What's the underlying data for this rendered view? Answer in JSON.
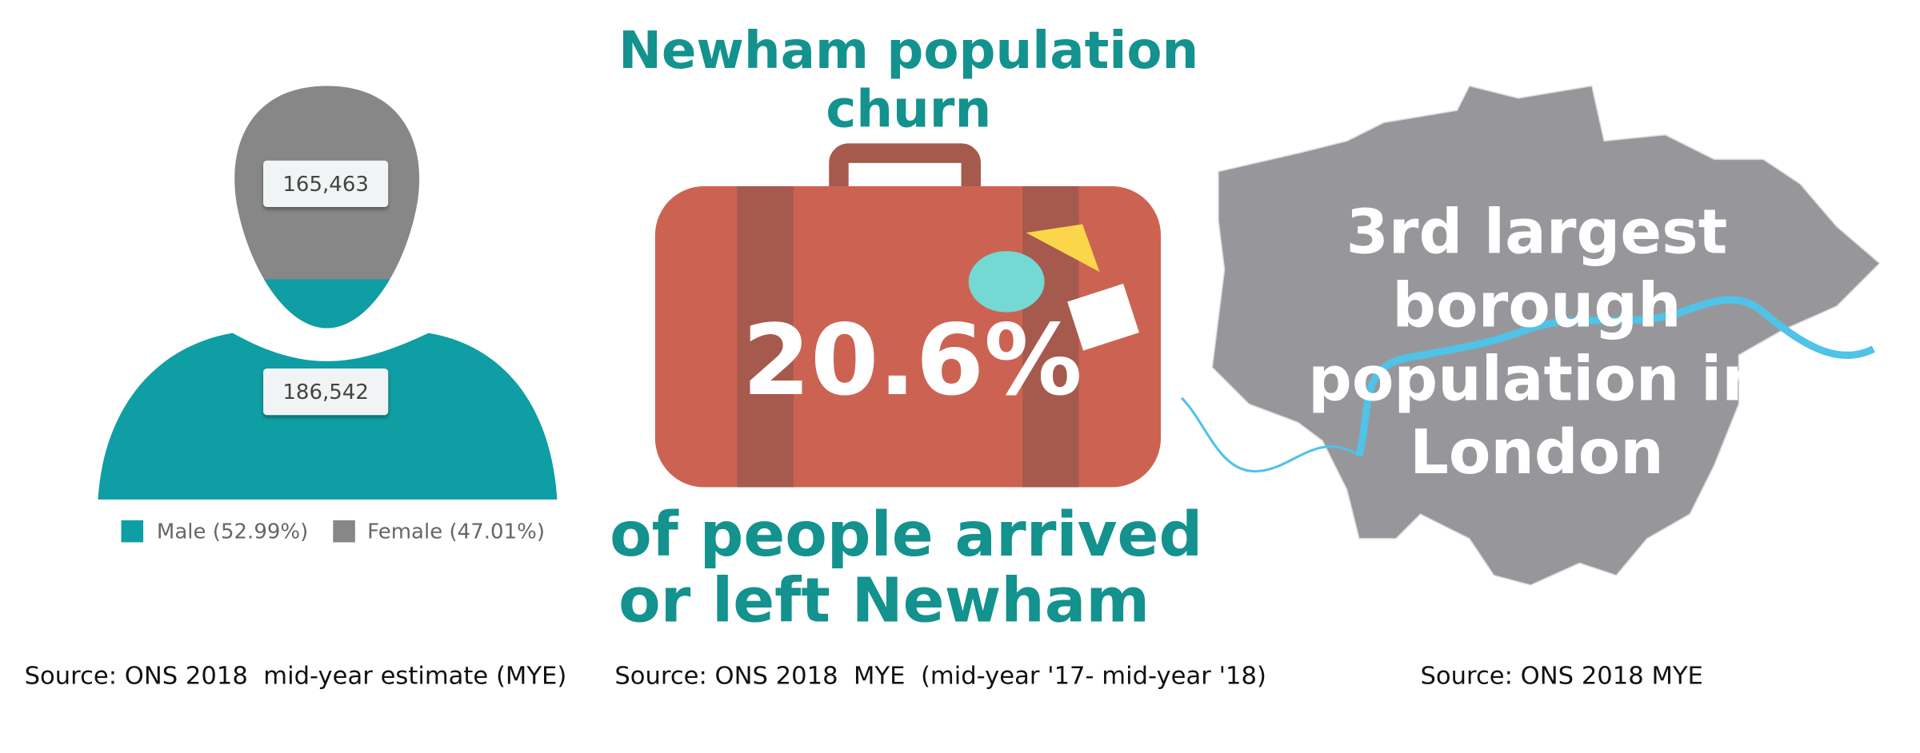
{
  "people_panel": {
    "female_count": "165,463",
    "male_count": "186,542",
    "legend": [
      {
        "label": "Male (52.99%)",
        "color": "#0e9ea3"
      },
      {
        "label": "Female (47.01%)",
        "color": "#878787"
      }
    ],
    "source": "Source: ONS 2018  mid-year estimate (MYE)"
  },
  "churn_panel": {
    "title_lines": [
      "Newham population",
      "churn"
    ],
    "value": "20.6%",
    "caption_lines": [
      "of people arrived",
      "or left Newham"
    ],
    "source": "Source: ONS 2018  MYE  (mid-year '17- mid-year '18)"
  },
  "map_panel": {
    "text_lines": [
      "3rd largest",
      "borough",
      "population in",
      "London"
    ],
    "source": "Source: ONS 2018 MYE"
  }
}
